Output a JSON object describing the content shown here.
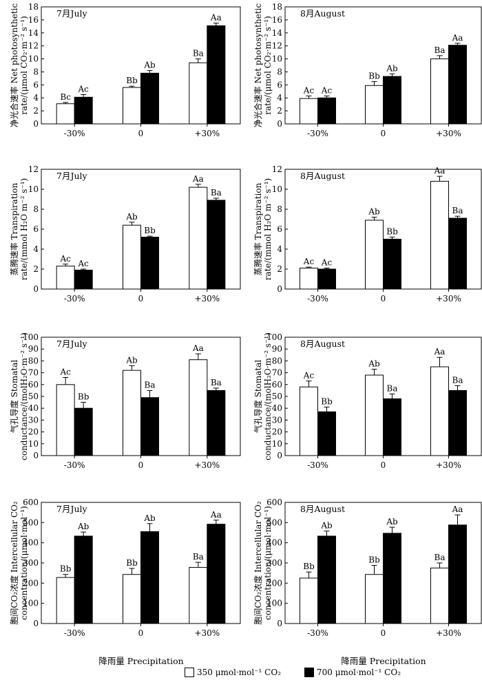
{
  "figure": {
    "xlabel": "降雨量 Precipitation",
    "legend": [
      {
        "label": "350 μmol·mol⁻¹ CO₂",
        "fill": "#ffffff"
      },
      {
        "label": "700 μmol·mol⁻¹ CO₂",
        "fill": "#000000"
      }
    ]
  },
  "chart_data": [
    {
      "id": "pn_july",
      "type": "bar",
      "month": "7月July",
      "ylabel_line1": "净光合速率 Net photosynthetic",
      "ylabel_line2": "rate/(μmol CO₂·m⁻² s⁻¹)",
      "categories": [
        "-30%",
        "0",
        "+30%"
      ],
      "ylim": [
        0,
        18
      ],
      "yticks": [
        0,
        2,
        4,
        6,
        8,
        10,
        12,
        14,
        16,
        18
      ],
      "series": [
        {
          "name": "350 μmol·mol⁻¹ CO₂",
          "values": [
            3.1,
            5.6,
            9.4
          ],
          "errors": [
            0.2,
            0.2,
            0.6
          ],
          "labels": [
            "Bc",
            "Bb",
            "Ba"
          ]
        },
        {
          "name": "700 μmol·mol⁻¹ CO₂",
          "values": [
            4.1,
            7.8,
            15.1
          ],
          "errors": [
            0.4,
            0.4,
            0.4
          ],
          "labels": [
            "Ac",
            "Ab",
            "Aa"
          ]
        }
      ]
    },
    {
      "id": "pn_aug",
      "type": "bar",
      "month": "8月August",
      "ylabel_line1": "净光合速率 Net photosynthetic",
      "ylabel_line2": "rate/(μmol CO₂·m⁻² s⁻¹)",
      "categories": [
        "-30%",
        "0",
        "+30%"
      ],
      "ylim": [
        0,
        18
      ],
      "yticks": [
        0,
        2,
        4,
        6,
        8,
        10,
        12,
        14,
        16,
        18
      ],
      "series": [
        {
          "name": "350 μmol·mol⁻¹ CO₂",
          "values": [
            3.9,
            5.9,
            10.0
          ],
          "errors": [
            0.4,
            0.6,
            0.5
          ],
          "labels": [
            "Ac",
            "Bb",
            "Ba"
          ]
        },
        {
          "name": "700 μmol·mol⁻¹ CO₂",
          "values": [
            4.0,
            7.3,
            12.1
          ],
          "errors": [
            0.3,
            0.4,
            0.3
          ],
          "labels": [
            "Ac",
            "Ab",
            "Aa"
          ]
        }
      ]
    },
    {
      "id": "tr_july",
      "type": "bar",
      "month": "7月July",
      "ylabel_line1": "蒸腾速率 Transpiration",
      "ylabel_line2": "rate/(mmol H₂O m⁻² s⁻¹)",
      "categories": [
        "-30%",
        "0",
        "+30%"
      ],
      "ylim": [
        0,
        12
      ],
      "yticks": [
        0,
        2,
        4,
        6,
        8,
        10,
        12
      ],
      "series": [
        {
          "name": "350 μmol·mol⁻¹ CO₂",
          "values": [
            2.3,
            6.4,
            10.2
          ],
          "errors": [
            0.2,
            0.3,
            0.3
          ],
          "labels": [
            "Ac",
            "Ab",
            "Aa"
          ]
        },
        {
          "name": "700 μmol·mol⁻¹ CO₂",
          "values": [
            1.9,
            5.2,
            8.9
          ],
          "errors": [
            0.1,
            0.1,
            0.2
          ],
          "labels": [
            "Ac",
            "Bb",
            "Ba"
          ]
        }
      ]
    },
    {
      "id": "tr_aug",
      "type": "bar",
      "month": "8月August",
      "ylabel_line1": "蒸腾速率 Transpiration",
      "ylabel_line2": "rate/(mmol H₂O m⁻² s⁻¹)",
      "categories": [
        "-30%",
        "0",
        "+30%"
      ],
      "ylim": [
        0,
        12
      ],
      "yticks": [
        0,
        2,
        4,
        6,
        8,
        10,
        12
      ],
      "series": [
        {
          "name": "350 μmol·mol⁻¹ CO₂",
          "values": [
            2.1,
            6.9,
            10.8
          ],
          "errors": [
            0.1,
            0.3,
            0.5
          ],
          "labels": [
            "Ac",
            "Ab",
            "Aa"
          ]
        },
        {
          "name": "700 μmol·mol⁻¹ CO₂",
          "values": [
            2.0,
            5.0,
            7.1
          ],
          "errors": [
            0.1,
            0.2,
            0.2
          ],
          "labels": [
            "Ac",
            "Bb",
            "Ba"
          ]
        }
      ]
    },
    {
      "id": "gs_july",
      "type": "bar",
      "month": "7月July",
      "ylabel_line1": "气孔导度 Stomatal",
      "ylabel_line2": "conductance/(molH₂O·m⁻² s⁻¹)",
      "categories": [
        "-30%",
        "0",
        "+30%"
      ],
      "ylim": [
        0,
        100
      ],
      "yticks": [
        0,
        10,
        20,
        30,
        40,
        50,
        60,
        70,
        80,
        90,
        100
      ],
      "series": [
        {
          "name": "350 μmol·mol⁻¹ CO₂",
          "values": [
            60,
            72,
            81
          ],
          "errors": [
            6,
            4,
            5
          ],
          "labels": [
            "Ac",
            "Ab",
            "Aa"
          ]
        },
        {
          "name": "700 μmol·mol⁻¹ CO₂",
          "values": [
            40,
            49,
            55
          ],
          "errors": [
            5,
            6,
            2
          ],
          "labels": [
            "Bb",
            "Ba",
            "Ba"
          ]
        }
      ]
    },
    {
      "id": "gs_aug",
      "type": "bar",
      "month": "8月August",
      "ylabel_line1": "气孔导度 Stomatal",
      "ylabel_line2": "conductance/(molH₂O·m⁻² s⁻¹)",
      "categories": [
        "-30%",
        "0",
        "+30%"
      ],
      "ylim": [
        0,
        100
      ],
      "yticks": [
        0,
        10,
        20,
        30,
        40,
        50,
        60,
        70,
        80,
        90,
        100
      ],
      "series": [
        {
          "name": "350 μmol·mol⁻¹ CO₂",
          "values": [
            58,
            68,
            75
          ],
          "errors": [
            5,
            5,
            8
          ],
          "labels": [
            "Ac",
            "Ab",
            "Aa"
          ]
        },
        {
          "name": "700 μmol·mol⁻¹ CO₂",
          "values": [
            37,
            48,
            55
          ],
          "errors": [
            4,
            4,
            4
          ],
          "labels": [
            "Bb",
            "Ba",
            "Ba"
          ]
        }
      ]
    },
    {
      "id": "ci_july",
      "type": "bar",
      "month": "7月July",
      "ylabel_line1": "胞间CO₂浓度 Intercellular CO₂",
      "ylabel_line2": "concentration/(μmol·mol⁻¹)",
      "categories": [
        "-30%",
        "0",
        "+30%"
      ],
      "ylim": [
        0,
        600
      ],
      "yticks": [
        0,
        100,
        200,
        300,
        400,
        500,
        600
      ],
      "series": [
        {
          "name": "350 μmol·mol⁻¹ CO₂",
          "values": [
            228,
            243,
            278
          ],
          "errors": [
            15,
            30,
            25
          ],
          "labels": [
            "Bb",
            "Bb",
            "Ba"
          ]
        },
        {
          "name": "700 μmol·mol⁻¹ CO₂",
          "values": [
            433,
            455,
            492
          ],
          "errors": [
            20,
            40,
            20
          ],
          "labels": [
            "Ab",
            "Ab",
            "Aa"
          ]
        }
      ]
    },
    {
      "id": "ci_aug",
      "type": "bar",
      "month": "8月August",
      "ylabel_line1": "胞间CO₂浓度 Intercellular CO₂",
      "ylabel_line2": "concentration/(μmol·mol⁻¹)",
      "categories": [
        "-30%",
        "0",
        "+30%"
      ],
      "ylim": [
        0,
        600
      ],
      "yticks": [
        0,
        100,
        200,
        300,
        400,
        500,
        600
      ],
      "series": [
        {
          "name": "350 μmol·mol⁻¹ CO₂",
          "values": [
            225,
            243,
            275
          ],
          "errors": [
            30,
            45,
            25
          ],
          "labels": [
            "Bb",
            "Bb",
            "Ba"
          ]
        },
        {
          "name": "700 μmol·mol⁻¹ CO₂",
          "values": [
            433,
            447,
            488
          ],
          "errors": [
            25,
            30,
            50
          ],
          "labels": [
            "Ab",
            "Ab",
            "Aa"
          ]
        }
      ]
    }
  ]
}
